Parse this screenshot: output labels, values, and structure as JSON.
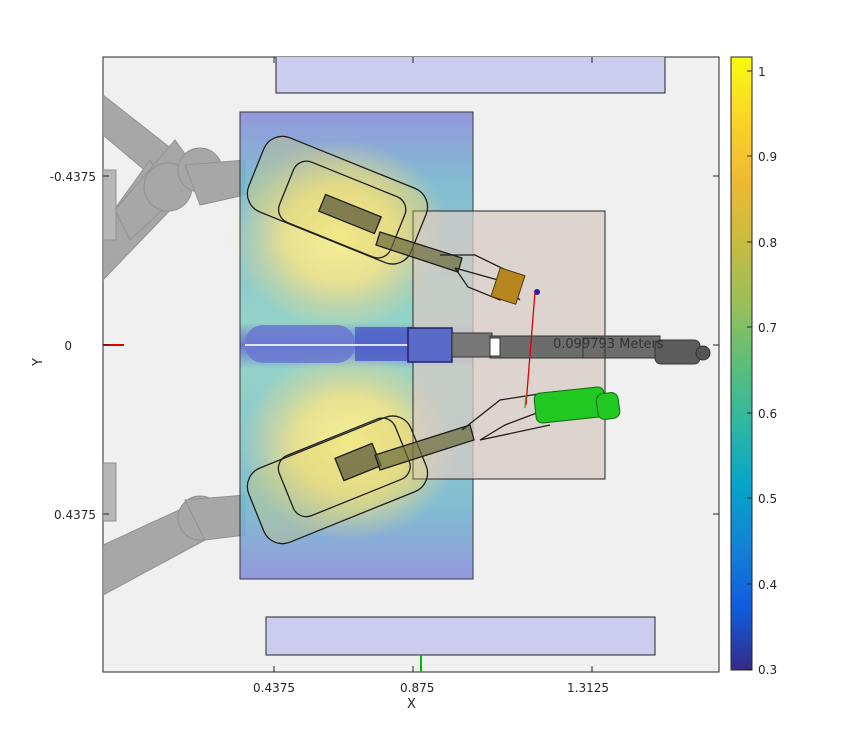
{
  "axes": {
    "xlabel": "X",
    "ylabel": "Y",
    "x_ticks": [
      "0.4375",
      "0.875",
      "1.3125"
    ],
    "y_ticks": [
      "-0.4375",
      "0",
      "0.4375"
    ],
    "xlim": [
      0,
      1.575
    ],
    "ylim": [
      -0.7875,
      0.7875
    ],
    "y_direction": "reversed"
  },
  "colorbar": {
    "colormap": "parula",
    "ticks": [
      "1",
      "0.9",
      "0.8",
      "0.7",
      "0.6",
      "0.5",
      "0.4",
      "0.3"
    ],
    "range": [
      0.3,
      1.02
    ]
  },
  "annotation": {
    "distance_text": "0.099793 Meters"
  },
  "colors": {
    "background": "#f0f0f0",
    "table_panel": "#ccccee",
    "target_zone": "#d7cbc6",
    "gripper_green": "#22c822",
    "object_gold": "#b8861e",
    "robot_arm": "#999999",
    "x_axis_marker": "#dd0000",
    "y_axis_marker": "#00bb00"
  }
}
